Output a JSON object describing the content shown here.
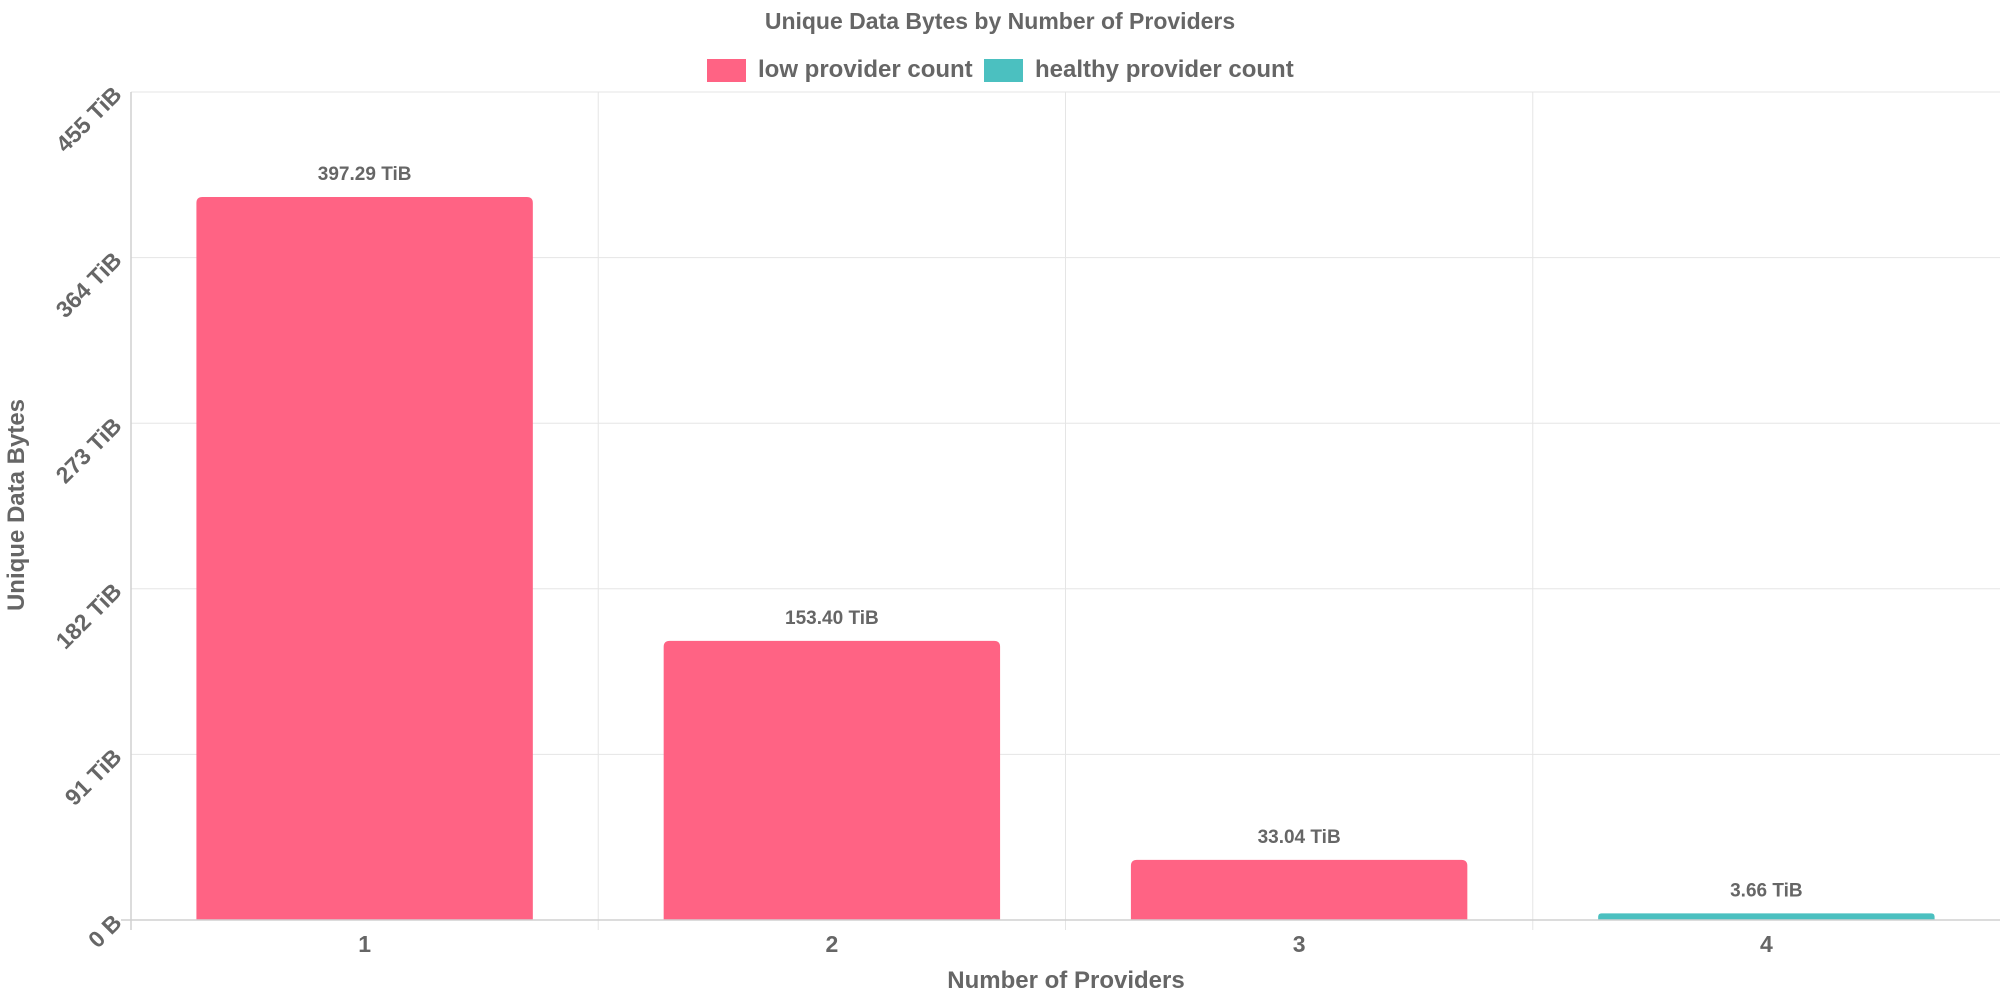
{
  "chart_data": {
    "type": "bar",
    "title": "Unique Data Bytes by Number of Providers",
    "xlabel": "Number of Providers",
    "ylabel": "Unique Data Bytes",
    "categories": [
      "1",
      "2",
      "3",
      "4"
    ],
    "values": [
      397.29,
      153.4,
      33.04,
      3.66
    ],
    "value_unit": "TiB",
    "value_labels": [
      "397.29 TiB",
      "153.40 TiB",
      "33.04 TiB",
      "3.66 TiB"
    ],
    "series_index": [
      0,
      0,
      0,
      1
    ],
    "series": [
      {
        "name": "low provider count",
        "color": "#ff6384"
      },
      {
        "name": "healthy provider count",
        "color": "#4bc0c0"
      }
    ],
    "y_ticks": [
      0,
      91,
      182,
      273,
      364,
      455
    ],
    "y_tick_labels": [
      "0 B",
      "91 TiB",
      "182 TiB",
      "273 TiB",
      "364 TiB",
      "455 TiB"
    ],
    "ylim": [
      0,
      455
    ],
    "grid": true,
    "legend_position": "top"
  }
}
